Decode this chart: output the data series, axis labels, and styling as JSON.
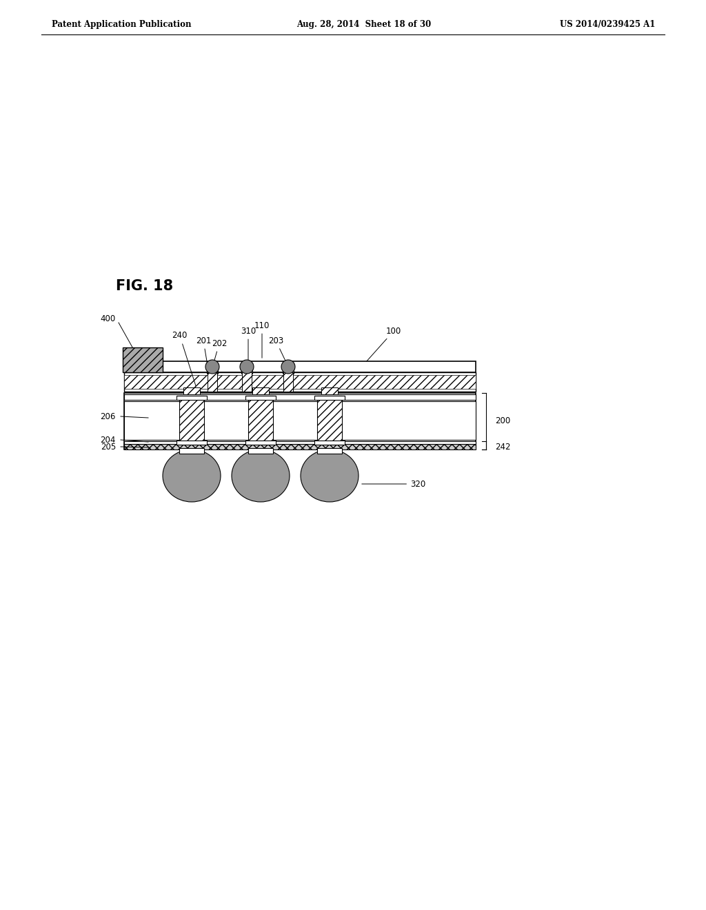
{
  "header_left": "Patent Application Publication",
  "header_center": "Aug. 28, 2014  Sheet 18 of 30",
  "header_right": "US 2014/0239425 A1",
  "fig_label": "FIG. 18",
  "background_color": "#ffffff",
  "line_color": "#000000",
  "gray_color": "#888888",
  "dark_gray": "#555555",
  "chip_gray": "#999999"
}
